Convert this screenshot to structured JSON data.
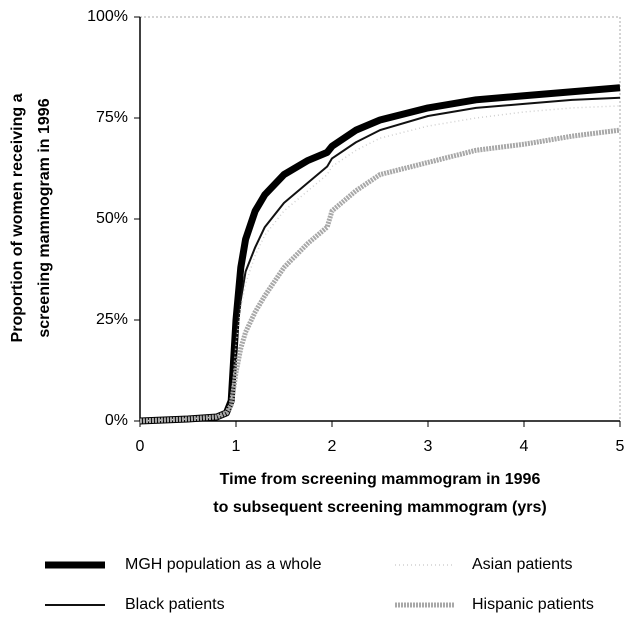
{
  "chart_data": {
    "type": "line",
    "xlabel": [
      "Time from screening mammogram in 1996",
      "to  subsequent screening mammogram (yrs)"
    ],
    "ylabel": [
      "Proportion of women receiving a",
      "screening mammogram in 1996"
    ],
    "x": [
      0,
      0.5,
      0.8,
      0.9,
      0.95,
      1.0,
      1.05,
      1.1,
      1.2,
      1.3,
      1.5,
      1.75,
      1.95,
      2.0,
      2.25,
      2.5,
      3,
      3.5,
      4,
      4.5,
      5
    ],
    "series": [
      {
        "name": "MGH population as a whole",
        "color": "#000000",
        "values": [
          0,
          0.5,
          1,
          2,
          5,
          25,
          38,
          45,
          52,
          56,
          61,
          64.5,
          66.5,
          68,
          72,
          74.5,
          77.5,
          79.5,
          80.5,
          81.5,
          82.5
        ]
      },
      {
        "name": "Black patients",
        "color": "#111111",
        "values": [
          0,
          0.5,
          1,
          2,
          4,
          20,
          30,
          37,
          43,
          48,
          54,
          59,
          63,
          65,
          69,
          72,
          75.5,
          77.5,
          78.5,
          79.5,
          80
        ]
      },
      {
        "name": "Asian patients",
        "color": "#d0d0d0",
        "values": [
          0,
          0.5,
          1,
          2,
          4,
          19,
          28,
          34,
          41,
          46,
          52,
          57,
          61,
          63,
          67,
          70,
          73,
          75,
          76.5,
          77.5,
          78
        ]
      },
      {
        "name": "Hispanic patients",
        "color": "#a8a8a8",
        "values": [
          0,
          0.5,
          1,
          2,
          4,
          12,
          18,
          22,
          27,
          31,
          38,
          44,
          48,
          52,
          57,
          61,
          64,
          67,
          68.5,
          70.5,
          72
        ]
      }
    ],
    "xlim": [
      0,
      5
    ],
    "xticks": [
      0,
      1,
      2,
      3,
      4,
      5
    ],
    "ylim": [
      0,
      100
    ],
    "yticks": [
      {
        "value": 0,
        "label": "0%"
      },
      {
        "value": 25,
        "label": "25%"
      },
      {
        "value": 50,
        "label": "50%"
      },
      {
        "value": 75,
        "label": "75%"
      },
      {
        "value": 100,
        "label": "100%"
      }
    ]
  }
}
